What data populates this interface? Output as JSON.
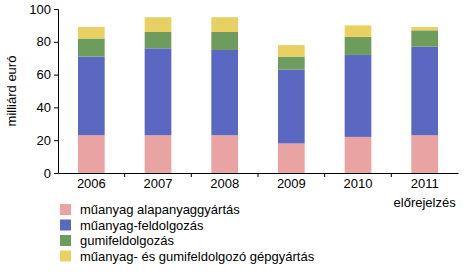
{
  "chart_data": {
    "type": "bar",
    "stacked": true,
    "grid": false,
    "legend": "bottom",
    "y_label": "milliárd euró",
    "categories": [
      "2006",
      "2007",
      "2008",
      "2009",
      "2010",
      "2011"
    ],
    "annotations": [
      {
        "text": "előrejelzés",
        "x": "2011"
      }
    ],
    "series": [
      {
        "name": "műanyag alapanyaggyártás",
        "color": "#e9a3a3",
        "values": [
          23,
          23,
          23,
          18,
          22,
          23
        ]
      },
      {
        "name": "műanyag-feldolgozás",
        "color": "#5a68c2",
        "values": [
          48,
          53,
          52,
          45,
          50,
          54
        ]
      },
      {
        "name": "gumifeldolgozás",
        "color": "#6e9c5c",
        "values": [
          11,
          10,
          11,
          8,
          11,
          10
        ]
      },
      {
        "name": "műanyag- és gumifeldolgozó gépgyártás",
        "color": "#e8d162",
        "values": [
          7,
          9,
          9,
          7,
          7,
          2
        ]
      }
    ],
    "ylim": [
      0,
      100
    ],
    "yticks": [
      0,
      20,
      40,
      60,
      80,
      100
    ]
  }
}
